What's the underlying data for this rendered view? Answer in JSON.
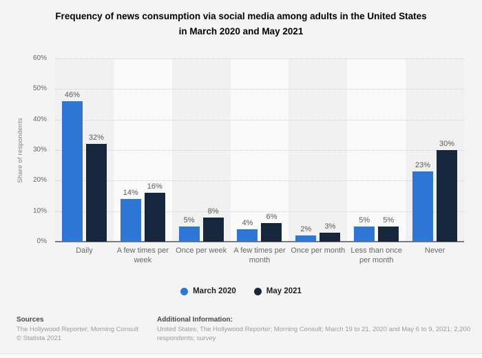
{
  "title": {
    "line1": "Frequency of news consumption via social media among adults in the United States",
    "line2": "in March 2020 and May 2021"
  },
  "chart_data": {
    "type": "bar",
    "title": "Frequency of news consumption via social media among adults in the United States in March 2020 and May 2021",
    "xlabel": "",
    "ylabel": "Share of respondents",
    "ylim": [
      0,
      60
    ],
    "ytick_step": 10,
    "ytick_suffix": "%",
    "value_suffix": "%",
    "grid": "horizontal-dotted",
    "legend_position": "bottom",
    "categories": [
      "Daily",
      "A few times per week",
      "Once per week",
      "A few times per month",
      "Once per month",
      "Less than once per month",
      "Never"
    ],
    "series": [
      {
        "name": "March 2020",
        "color": "#2d76d6",
        "values": [
          46,
          14,
          5,
          4,
          2,
          5,
          23
        ]
      },
      {
        "name": "May 2021",
        "color": "#16263c",
        "values": [
          32,
          16,
          8,
          6,
          3,
          5,
          30
        ]
      }
    ]
  },
  "colors": {
    "background": "#f4f4f4",
    "stripe_odd": "#f1f1f1",
    "stripe_even": "#fafafa",
    "gridline": "#cccccc",
    "axis": "#7b7b7b",
    "march_2020": "#2d76d6",
    "may_2021": "#16263c"
  },
  "footer": {
    "sources_label": "Sources",
    "sources_text": "The Hollywood Reporter; Morning Consult",
    "copyright": "© Statista 2021",
    "additional_label": "Additional Information:",
    "additional_text": "United States; The Hollywood Reporter; Morning Consult; March 19 to 21, 2020 and May 6 to 9, 2021; 2,200 respondents; survey"
  }
}
